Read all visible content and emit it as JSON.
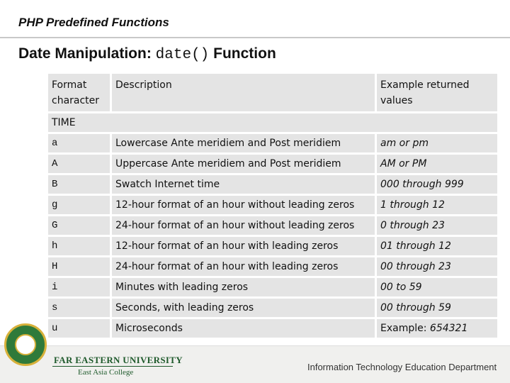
{
  "slide": {
    "header": "PHP Predefined Functions",
    "title_prefix": "Date Manipulation: ",
    "title_code": "date()",
    "title_suffix": " Function"
  },
  "table": {
    "columns": [
      "Format character",
      "Description",
      "Example returned values"
    ],
    "section": "TIME",
    "rows": [
      {
        "char": "a",
        "description": "Lowercase Ante meridiem and Post meridiem",
        "example": "am or pm"
      },
      {
        "char": "A",
        "description": "Uppercase Ante meridiem and Post meridiem",
        "example": "AM or PM"
      },
      {
        "char": "B",
        "description": "Swatch Internet time",
        "example": "000 through 999"
      },
      {
        "char": "g",
        "description": "12-hour format of an hour without leading zeros",
        "example": "1 through 12"
      },
      {
        "char": "G",
        "description": "24-hour format of an hour without leading zeros",
        "example": "0 through 23"
      },
      {
        "char": "h",
        "description": "12-hour format of an hour with leading zeros",
        "example": "01 through 12"
      },
      {
        "char": "H",
        "description": "24-hour format of an hour with leading zeros",
        "example": "00 through 23"
      },
      {
        "char": "i",
        "description": "Minutes with leading zeros",
        "example": "00 to 59"
      },
      {
        "char": "s",
        "description": "Seconds, with leading zeros",
        "example": "00 through 59"
      },
      {
        "char": "u",
        "description": "Microseconds",
        "example": "Example: 654321"
      }
    ]
  },
  "footer": {
    "university": "FAR EASTERN UNIVERSITY",
    "college": "East Asia College",
    "department": "Information Technology Education Department",
    "logo_icon": "university-seal-icon"
  }
}
